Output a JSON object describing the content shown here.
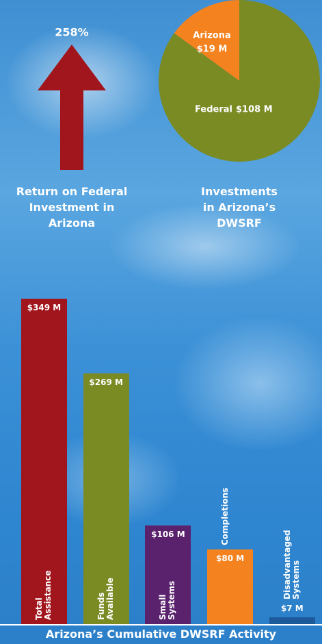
{
  "chart_data": [
    {
      "type": "arrow",
      "title": "Return on Federal Investment in Arizona",
      "values": [
        258
      ],
      "value_labels": [
        "258%"
      ],
      "color": "#a1151c"
    },
    {
      "type": "pie",
      "title": "Investments in Arizona’s DWSRF",
      "categories": [
        "Arizona",
        "Federal"
      ],
      "values": [
        19,
        108
      ],
      "value_labels": [
        "$19 M",
        "$108 M"
      ],
      "colors": [
        "#f4821f",
        "#7a8b24"
      ]
    },
    {
      "type": "bar",
      "title": "Arizona’s Cumulative DWSRF Activity",
      "categories": [
        "Total Assistance",
        "Funds Available",
        "Small Systems",
        "Completions",
        "Disadvantaged Systems"
      ],
      "values": [
        349,
        269,
        106,
        80,
        7
      ],
      "value_labels": [
        "$349 M",
        "$269 M",
        "$106 M",
        "$80 M",
        "$7 M"
      ],
      "colors": [
        "#a1151c",
        "#7a8b24",
        "#5a216d",
        "#f4821f",
        "#1d5a9c"
      ]
    }
  ]
}
